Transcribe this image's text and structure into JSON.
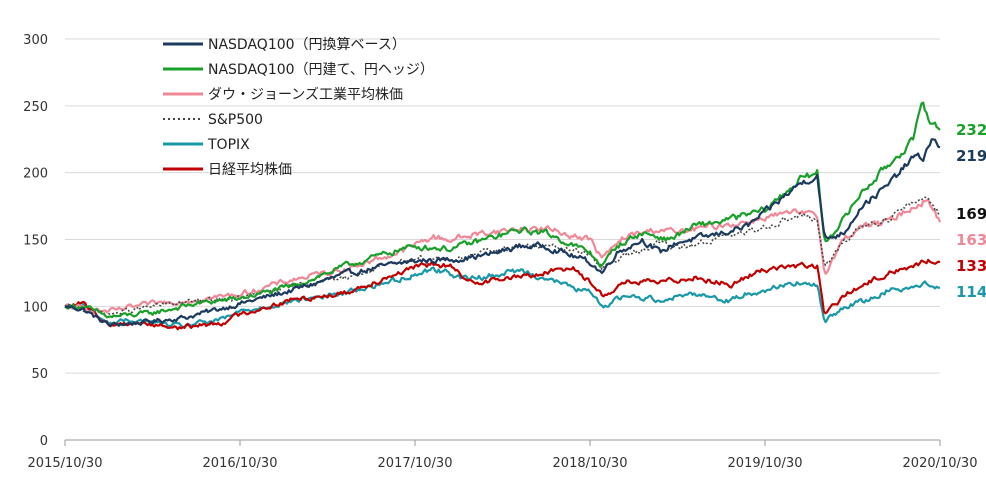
{
  "chart_data": {
    "type": "line",
    "ylim": [
      0,
      300
    ],
    "yticks": [
      "0",
      "50",
      "100",
      "150",
      "200",
      "250",
      "300"
    ],
    "xticks": [
      "2015/10/30",
      "2016/10/30",
      "2017/10/30",
      "2018/10/30",
      "2019/10/30",
      "2020/10/30"
    ],
    "grid": "horizontal",
    "legend_position": "top-left",
    "series": [
      {
        "name": "NASDAQ100（円換算ベース）",
        "color": "#1b3a5e",
        "end_label": "219",
        "points": [
          [
            0,
            100
          ],
          [
            0.1,
            98
          ],
          [
            0.25,
            86
          ],
          [
            0.45,
            88
          ],
          [
            0.7,
            92
          ],
          [
            1.0,
            102
          ],
          [
            1.3,
            112
          ],
          [
            1.6,
            124
          ],
          [
            1.9,
            132
          ],
          [
            2.0,
            134
          ],
          [
            2.2,
            135
          ],
          [
            2.4,
            138
          ],
          [
            2.6,
            145
          ],
          [
            2.75,
            145
          ],
          [
            3.0,
            133
          ],
          [
            3.07,
            125
          ],
          [
            3.15,
            140
          ],
          [
            3.3,
            150
          ],
          [
            3.4,
            140
          ],
          [
            3.5,
            148
          ],
          [
            3.7,
            153
          ],
          [
            3.9,
            160
          ],
          [
            4.0,
            170
          ],
          [
            4.2,
            192
          ],
          [
            4.3,
            198
          ],
          [
            4.34,
            150
          ],
          [
            4.45,
            155
          ],
          [
            4.55,
            175
          ],
          [
            4.7,
            190
          ],
          [
            4.85,
            212
          ],
          [
            4.9,
            210
          ],
          [
            4.95,
            225
          ],
          [
            5.0,
            219
          ]
        ]
      },
      {
        "name": "NASDAQ100（円建て、円ヘッジ）",
        "color": "#1aa02a",
        "end_label": "232",
        "points": [
          [
            0,
            100
          ],
          [
            0.1,
            100
          ],
          [
            0.25,
            92
          ],
          [
            0.5,
            95
          ],
          [
            0.75,
            102
          ],
          [
            1.0,
            106
          ],
          [
            1.3,
            115
          ],
          [
            1.6,
            130
          ],
          [
            1.9,
            142
          ],
          [
            2.0,
            145
          ],
          [
            2.2,
            143
          ],
          [
            2.4,
            150
          ],
          [
            2.6,
            157
          ],
          [
            2.75,
            155
          ],
          [
            3.0,
            140
          ],
          [
            3.07,
            130
          ],
          [
            3.15,
            145
          ],
          [
            3.3,
            155
          ],
          [
            3.45,
            150
          ],
          [
            3.6,
            160
          ],
          [
            3.8,
            165
          ],
          [
            4.0,
            172
          ],
          [
            4.2,
            195
          ],
          [
            4.3,
            200
          ],
          [
            4.34,
            148
          ],
          [
            4.45,
            165
          ],
          [
            4.55,
            185
          ],
          [
            4.7,
            205
          ],
          [
            4.85,
            225
          ],
          [
            4.9,
            252
          ],
          [
            4.95,
            238
          ],
          [
            5.0,
            232
          ]
        ]
      },
      {
        "name": "ダウ・ジョーンズ工業平均株価",
        "color": "#f08898",
        "end_label": "163",
        "points": [
          [
            0,
            100
          ],
          [
            0.25,
            96
          ],
          [
            0.5,
            102
          ],
          [
            0.75,
            105
          ],
          [
            1.0,
            109
          ],
          [
            1.3,
            120
          ],
          [
            1.6,
            128
          ],
          [
            1.9,
            140
          ],
          [
            2.1,
            152
          ],
          [
            2.2,
            150
          ],
          [
            2.4,
            155
          ],
          [
            2.6,
            158
          ],
          [
            2.75,
            158
          ],
          [
            3.0,
            150
          ],
          [
            3.07,
            136
          ],
          [
            3.2,
            152
          ],
          [
            3.4,
            158
          ],
          [
            3.5,
            155
          ],
          [
            3.7,
            160
          ],
          [
            3.9,
            163
          ],
          [
            4.0,
            167
          ],
          [
            4.2,
            170
          ],
          [
            4.3,
            167
          ],
          [
            4.34,
            125
          ],
          [
            4.45,
            150
          ],
          [
            4.55,
            160
          ],
          [
            4.7,
            163
          ],
          [
            4.85,
            175
          ],
          [
            4.93,
            180
          ],
          [
            4.97,
            170
          ],
          [
            5.0,
            163
          ]
        ]
      },
      {
        "name": "S&P500",
        "color": "#444444",
        "dashed": true,
        "end_label": "169",
        "points": [
          [
            0,
            100
          ],
          [
            0.25,
            94
          ],
          [
            0.5,
            100
          ],
          [
            0.75,
            104
          ],
          [
            1.0,
            106
          ],
          [
            1.3,
            115
          ],
          [
            1.6,
            122
          ],
          [
            1.9,
            132
          ],
          [
            2.0,
            137
          ],
          [
            2.2,
            135
          ],
          [
            2.4,
            140
          ],
          [
            2.6,
            145
          ],
          [
            2.75,
            145
          ],
          [
            3.0,
            140
          ],
          [
            3.07,
            128
          ],
          [
            3.2,
            138
          ],
          [
            3.4,
            148
          ],
          [
            3.5,
            143
          ],
          [
            3.7,
            150
          ],
          [
            3.9,
            155
          ],
          [
            4.0,
            160
          ],
          [
            4.2,
            168
          ],
          [
            4.3,
            165
          ],
          [
            4.34,
            128
          ],
          [
            4.45,
            148
          ],
          [
            4.55,
            160
          ],
          [
            4.7,
            165
          ],
          [
            4.85,
            178
          ],
          [
            4.93,
            182
          ],
          [
            4.97,
            175
          ],
          [
            5.0,
            169
          ]
        ]
      },
      {
        "name": "TOPIX",
        "color": "#1a98a8",
        "end_label": "114",
        "points": [
          [
            0,
            100
          ],
          [
            0.1,
            101
          ],
          [
            0.25,
            87
          ],
          [
            0.4,
            90
          ],
          [
            0.65,
            85
          ],
          [
            0.9,
            90
          ],
          [
            1.0,
            96
          ],
          [
            1.3,
            104
          ],
          [
            1.6,
            110
          ],
          [
            1.9,
            120
          ],
          [
            2.1,
            128
          ],
          [
            2.2,
            125
          ],
          [
            2.3,
            120
          ],
          [
            2.6,
            127
          ],
          [
            2.7,
            123
          ],
          [
            3.0,
            110
          ],
          [
            3.07,
            100
          ],
          [
            3.2,
            108
          ],
          [
            3.4,
            105
          ],
          [
            3.6,
            110
          ],
          [
            3.8,
            104
          ],
          [
            3.9,
            110
          ],
          [
            4.0,
            112
          ],
          [
            4.15,
            118
          ],
          [
            4.3,
            115
          ],
          [
            4.34,
            88
          ],
          [
            4.45,
            100
          ],
          [
            4.6,
            105
          ],
          [
            4.7,
            112
          ],
          [
            4.85,
            115
          ],
          [
            4.95,
            117
          ],
          [
            5.0,
            114
          ]
        ]
      },
      {
        "name": "日経平均株価",
        "color": "#c00000",
        "end_label": "133",
        "points": [
          [
            0,
            100
          ],
          [
            0.1,
            102
          ],
          [
            0.25,
            86
          ],
          [
            0.4,
            88
          ],
          [
            0.65,
            84
          ],
          [
            0.9,
            88
          ],
          [
            1.0,
            94
          ],
          [
            1.3,
            105
          ],
          [
            1.6,
            110
          ],
          [
            1.9,
            125
          ],
          [
            2.1,
            132
          ],
          [
            2.2,
            130
          ],
          [
            2.3,
            118
          ],
          [
            2.6,
            122
          ],
          [
            2.75,
            125
          ],
          [
            2.9,
            130
          ],
          [
            3.0,
            118
          ],
          [
            3.07,
            108
          ],
          [
            3.2,
            118
          ],
          [
            3.4,
            118
          ],
          [
            3.6,
            122
          ],
          [
            3.8,
            116
          ],
          [
            3.9,
            122
          ],
          [
            4.0,
            128
          ],
          [
            4.15,
            130
          ],
          [
            4.3,
            130
          ],
          [
            4.34,
            93
          ],
          [
            4.45,
            108
          ],
          [
            4.6,
            118
          ],
          [
            4.7,
            125
          ],
          [
            4.85,
            130
          ],
          [
            4.95,
            135
          ],
          [
            5.0,
            133
          ]
        ]
      }
    ]
  }
}
